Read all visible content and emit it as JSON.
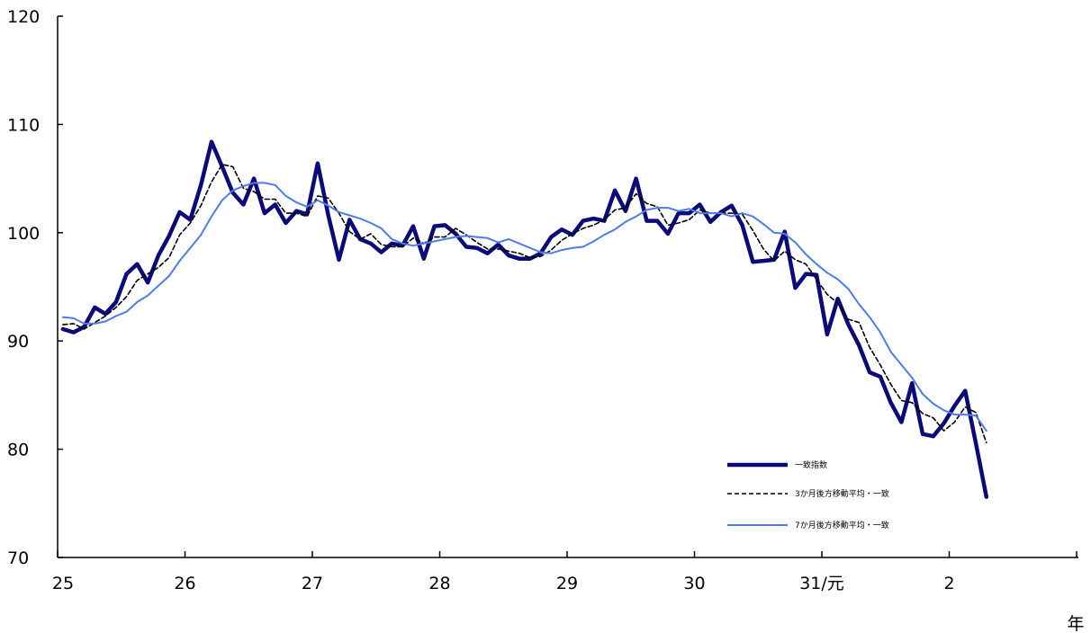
{
  "chart_data": {
    "type": "line",
    "title": "",
    "xlabel": "",
    "ylabel": "",
    "x_unit_label": "年",
    "ylim": [
      70,
      120
    ],
    "yticks": [
      70,
      80,
      90,
      100,
      110,
      120
    ],
    "x_tick_labels": [
      "25",
      "26",
      "27",
      "28",
      "29",
      "30",
      "31/元",
      "2"
    ],
    "x_start_label": "25",
    "x_months_total": 96,
    "legend_position": "bottom-right",
    "grid": false,
    "series": [
      {
        "name": "一致指数",
        "color": "#0a0a78",
        "style": "solid-thick",
        "values": [
          91.1,
          90.8,
          91.3,
          93.1,
          92.5,
          93.6,
          96.2,
          97.1,
          95.4,
          97.9,
          99.7,
          101.9,
          101.2,
          104.4,
          108.4,
          106.1,
          103.7,
          102.6,
          105.0,
          101.8,
          102.6,
          100.9,
          102.0,
          101.7,
          106.4,
          101.6,
          97.5,
          101.2,
          99.4,
          99.0,
          98.2,
          99.0,
          98.8,
          100.6,
          97.6,
          100.6,
          100.7,
          99.9,
          98.7,
          98.6,
          98.1,
          98.9,
          97.9,
          97.6,
          97.6,
          98.1,
          99.6,
          100.3,
          99.8,
          101.1,
          101.3,
          101.1,
          103.9,
          102.0,
          105.0,
          101.1,
          101.1,
          99.9,
          101.8,
          101.8,
          102.6,
          101.0,
          101.9,
          102.5,
          100.7,
          97.3,
          97.4,
          97.5,
          100.1,
          94.9,
          96.2,
          96.1,
          90.6,
          93.9,
          91.5,
          89.6,
          87.1,
          86.7,
          84.3,
          82.5,
          86.1,
          81.4,
          81.2,
          82.4,
          84.0,
          85.4,
          80.6,
          75.6
        ]
      },
      {
        "name": "3か月後方移動平均・一致",
        "color": "#000000",
        "style": "dashed",
        "values": [
          91.5,
          91.6,
          91.1,
          91.7,
          92.3,
          93.1,
          94.1,
          95.6,
          96.2,
          96.8,
          97.7,
          99.8,
          100.9,
          102.5,
          104.7,
          106.3,
          106.1,
          104.1,
          103.8,
          103.1,
          103.1,
          101.8,
          101.8,
          101.5,
          103.4,
          103.2,
          101.8,
          100.1,
          99.4,
          99.9,
          98.9,
          98.7,
          98.7,
          99.5,
          99.0,
          99.6,
          99.6,
          100.4,
          99.8,
          99.1,
          98.5,
          98.5,
          98.3,
          98.1,
          97.7,
          97.8,
          98.4,
          99.3,
          99.9,
          100.4,
          100.7,
          101.2,
          102.1,
          102.3,
          103.6,
          102.7,
          102.4,
          100.7,
          100.9,
          101.2,
          102.1,
          101.8,
          101.8,
          101.8,
          101.7,
          100.2,
          98.5,
          97.4,
          98.3,
          97.5,
          97.1,
          95.7,
          94.3,
          93.5,
          92.0,
          91.7,
          89.4,
          87.8,
          86.0,
          84.5,
          84.3,
          83.3,
          82.9,
          81.7,
          82.5,
          83.9,
          83.4,
          80.6
        ]
      },
      {
        "name": "7か月後方移動平均・一致",
        "color": "#4f7ce8",
        "style": "solid-thin",
        "values": [
          92.2,
          92.1,
          91.6,
          91.6,
          91.8,
          92.3,
          92.7,
          93.6,
          94.2,
          95.1,
          96.0,
          97.4,
          98.6,
          99.8,
          101.5,
          103.0,
          103.9,
          104.3,
          104.6,
          104.6,
          104.4,
          103.4,
          102.8,
          102.4,
          103.0,
          102.5,
          101.9,
          101.6,
          101.3,
          100.9,
          100.4,
          99.4,
          99.0,
          98.8,
          99.0,
          99.2,
          99.4,
          99.6,
          99.7,
          99.6,
          99.5,
          99.1,
          99.4,
          99.0,
          98.6,
          98.2,
          98.1,
          98.4,
          98.6,
          98.7,
          99.2,
          99.8,
          100.3,
          101.0,
          101.5,
          102.1,
          102.3,
          102.3,
          102.0,
          102.2,
          101.8,
          101.8,
          101.8,
          101.5,
          101.8,
          101.5,
          100.8,
          100.0,
          99.9,
          99.1,
          98.0,
          97.1,
          96.3,
          95.7,
          94.8,
          93.4,
          92.2,
          90.8,
          89.0,
          87.8,
          86.6,
          85.1,
          84.2,
          83.6,
          83.2,
          83.2,
          83.1,
          81.7
        ]
      }
    ]
  }
}
